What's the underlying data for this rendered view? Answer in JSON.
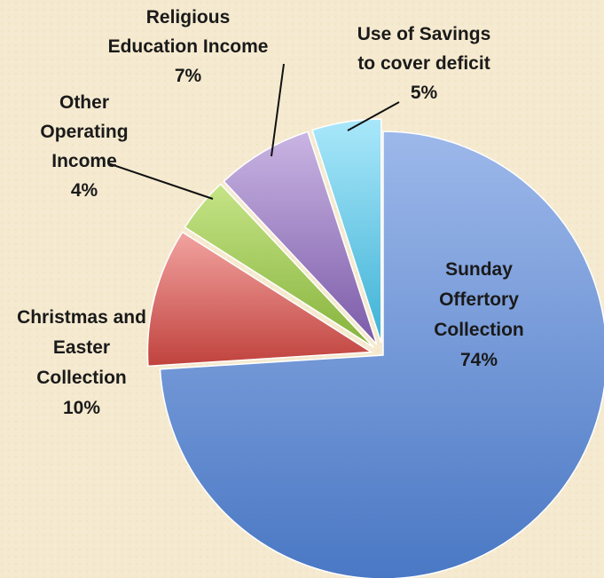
{
  "chart_data": {
    "type": "pie",
    "title": "",
    "slices": [
      {
        "label_lines": [
          "Sunday",
          "Offertory",
          "Collection"
        ],
        "value": 74,
        "value_label": "74%",
        "color_light": "#9db8ea",
        "color_dark": "#4a78c4",
        "exploded": false
      },
      {
        "label_lines": [
          "Christmas and",
          "Easter",
          "Collection"
        ],
        "value": 10,
        "value_label": "10%",
        "color_light": "#f2a3a0",
        "color_dark": "#c0423d",
        "exploded": true
      },
      {
        "label_lines": [
          "Other",
          "Operating",
          "Income"
        ],
        "value": 4,
        "value_label": "4%",
        "color_light": "#c6e487",
        "color_dark": "#86b33c",
        "exploded": true
      },
      {
        "label_lines": [
          "Religious",
          "Education Income"
        ],
        "value": 7,
        "value_label": "7%",
        "color_light": "#c9b5e3",
        "color_dark": "#7b5aa8",
        "exploded": true
      },
      {
        "label_lines": [
          "Use of Savings",
          "to cover deficit"
        ],
        "value": 5,
        "value_label": "5%",
        "color_light": "#a9e7fa",
        "color_dark": "#3fb2d6",
        "exploded": true
      }
    ],
    "legend": "none",
    "labels": "outside-with-leaders"
  }
}
